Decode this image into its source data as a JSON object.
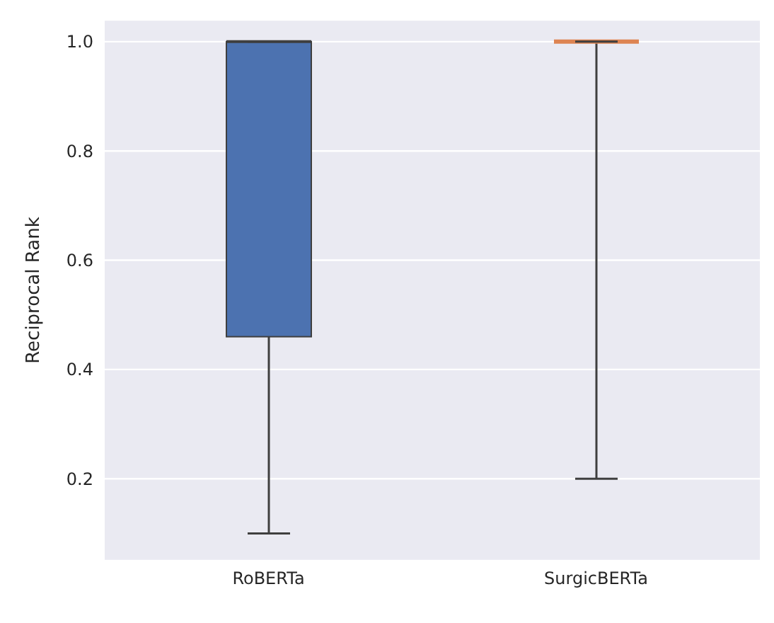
{
  "chart_data": {
    "type": "box",
    "ylabel": "Reciprocal Rank",
    "categories": [
      "RoBERTa",
      "SurgicBERTa"
    ],
    "boxes": [
      {
        "low": 0.1,
        "q1": 0.46,
        "median": 1.0,
        "q3": 1.0,
        "high": 1.0
      },
      {
        "low": 0.2,
        "q1": 1.0,
        "median": 1.0,
        "q3": 1.0,
        "high": 1.0
      }
    ],
    "colors": [
      "#4c72b0",
      "#dd8452"
    ],
    "ylim": [
      0.05,
      1.04
    ],
    "yticks": [
      0.2,
      0.4,
      0.6,
      0.8,
      {
        "value": 1,
        "label": "1.0"
      }
    ],
    "grid": "y"
  }
}
